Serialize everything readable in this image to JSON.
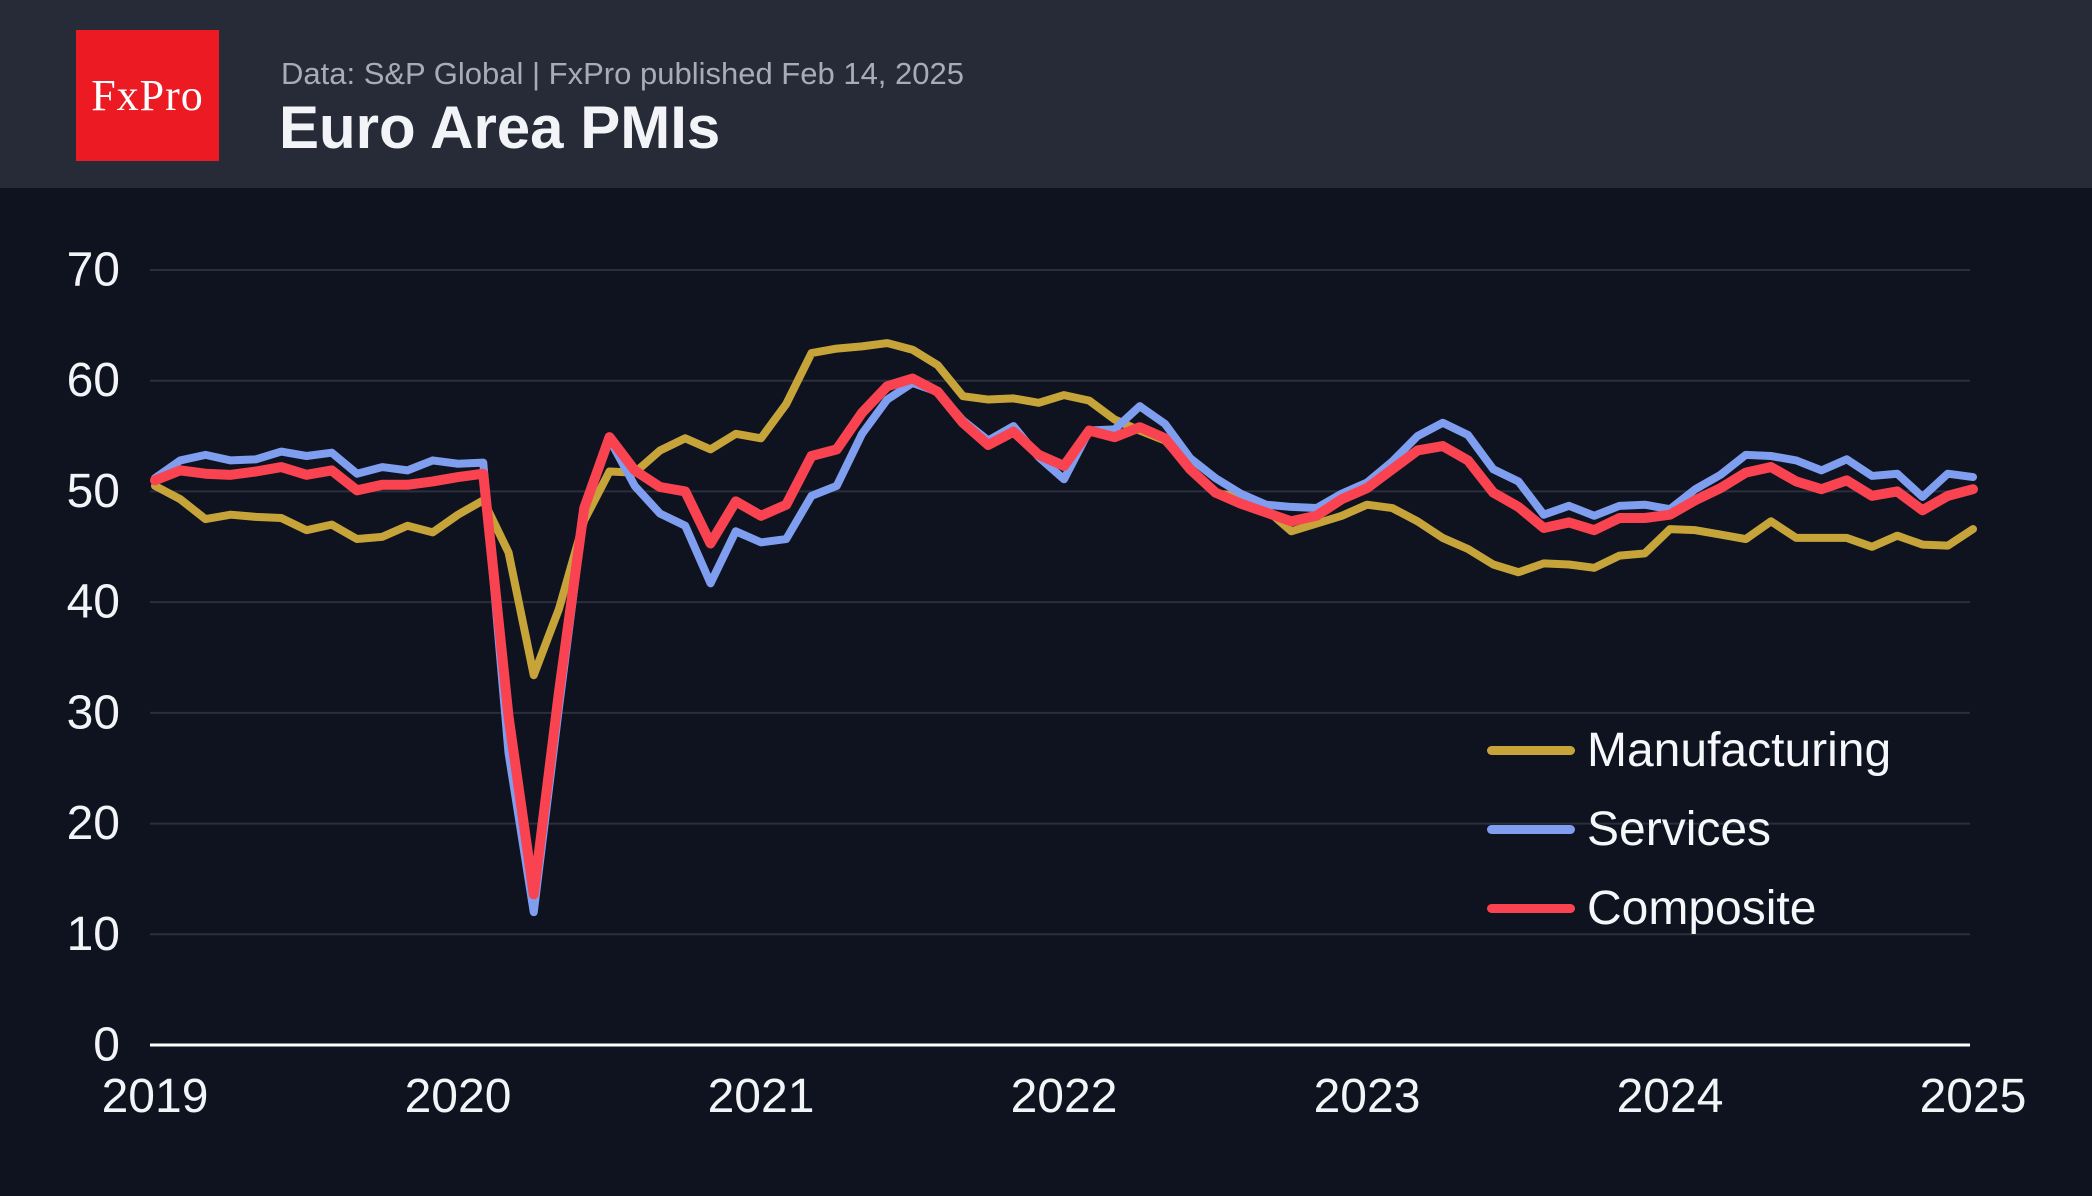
{
  "header": {
    "logo_text": "FxPro",
    "subtitle": "Data: S&P Global | FxPro published Feb 14, 2025",
    "title": "Euro Area PMIs"
  },
  "colors": {
    "header_bg": "#272b37",
    "chart_bg": "#0e131f",
    "logo_red": "#ec1a23",
    "grid": "#2a2f3b",
    "axis": "#ffffff",
    "tick_text": "#f2f4f7",
    "subtitle_text": "#a6acb8",
    "legend_text": "#f5f7fa"
  },
  "chart_data": {
    "type": "line",
    "title": "Euro Area PMIs",
    "xlabel": "",
    "ylabel": "",
    "ylim": [
      0,
      70
    ],
    "y_ticks": [
      0,
      10,
      20,
      30,
      40,
      50,
      60,
      70
    ],
    "x_tick_labels": [
      "2019",
      "2020",
      "2021",
      "2022",
      "2023",
      "2024",
      "2025"
    ],
    "x_monthly_from": "2019-01",
    "x_monthly_to": "2025-01",
    "grid": "horizontal",
    "legend_position": "bottom-right",
    "series": [
      {
        "name": "Manufacturing",
        "color": "#c7a43a",
        "line_width": 8,
        "values": [
          50.5,
          49.3,
          47.5,
          47.9,
          47.7,
          47.6,
          46.5,
          47.0,
          45.7,
          45.9,
          46.9,
          46.3,
          47.9,
          49.2,
          44.5,
          33.4,
          39.4,
          47.4,
          51.8,
          51.7,
          53.7,
          54.8,
          53.8,
          55.2,
          54.8,
          57.9,
          62.5,
          62.9,
          63.1,
          63.4,
          62.8,
          61.4,
          58.6,
          58.3,
          58.4,
          58.0,
          58.7,
          58.2,
          56.5,
          55.5,
          54.6,
          52.1,
          49.8,
          49.6,
          48.4,
          46.4,
          47.1,
          47.8,
          48.8,
          48.5,
          47.3,
          45.8,
          44.8,
          43.4,
          42.7,
          43.5,
          43.4,
          43.1,
          44.2,
          44.4,
          46.6,
          46.5,
          46.1,
          45.7,
          47.3,
          45.8,
          45.8,
          45.8,
          45.0,
          46.0,
          45.2,
          45.1,
          46.6
        ]
      },
      {
        "name": "Services",
        "color": "#7f9ef0",
        "line_width": 8,
        "values": [
          51.2,
          52.8,
          53.3,
          52.8,
          52.9,
          53.6,
          53.2,
          53.5,
          51.6,
          52.2,
          51.9,
          52.8,
          52.5,
          52.6,
          26.4,
          12.0,
          30.5,
          48.3,
          54.7,
          50.5,
          48.0,
          46.9,
          41.7,
          46.4,
          45.4,
          45.7,
          49.6,
          50.5,
          55.2,
          58.3,
          59.8,
          59.0,
          56.4,
          54.6,
          55.9,
          53.1,
          51.1,
          55.5,
          55.6,
          57.7,
          56.1,
          53.0,
          51.2,
          49.8,
          48.8,
          48.6,
          48.5,
          49.8,
          50.8,
          52.7,
          55.0,
          56.2,
          55.1,
          52.0,
          50.9,
          47.9,
          48.7,
          47.8,
          48.7,
          48.8,
          48.4,
          50.2,
          51.5,
          53.3,
          53.2,
          52.8,
          51.9,
          52.9,
          51.4,
          51.6,
          49.5,
          51.6,
          51.3
        ]
      },
      {
        "name": "Composite",
        "color": "#fa4350",
        "line_width": 10,
        "values": [
          51.0,
          51.9,
          51.6,
          51.5,
          51.8,
          52.2,
          51.5,
          51.9,
          50.1,
          50.6,
          50.6,
          50.9,
          51.3,
          51.6,
          29.7,
          13.6,
          31.9,
          48.5,
          54.9,
          51.9,
          50.4,
          50.0,
          45.3,
          49.1,
          47.8,
          48.8,
          53.2,
          53.8,
          57.1,
          59.5,
          60.2,
          59.0,
          56.2,
          54.2,
          55.4,
          53.3,
          52.3,
          55.5,
          54.9,
          55.8,
          54.8,
          52.0,
          49.9,
          48.9,
          48.1,
          47.3,
          47.8,
          49.3,
          50.3,
          52.0,
          53.7,
          54.1,
          52.8,
          49.9,
          48.6,
          46.7,
          47.2,
          46.5,
          47.6,
          47.6,
          47.9,
          49.2,
          50.3,
          51.7,
          52.2,
          50.9,
          50.2,
          51.0,
          49.6,
          50.0,
          48.3,
          49.6,
          50.2
        ]
      }
    ]
  }
}
